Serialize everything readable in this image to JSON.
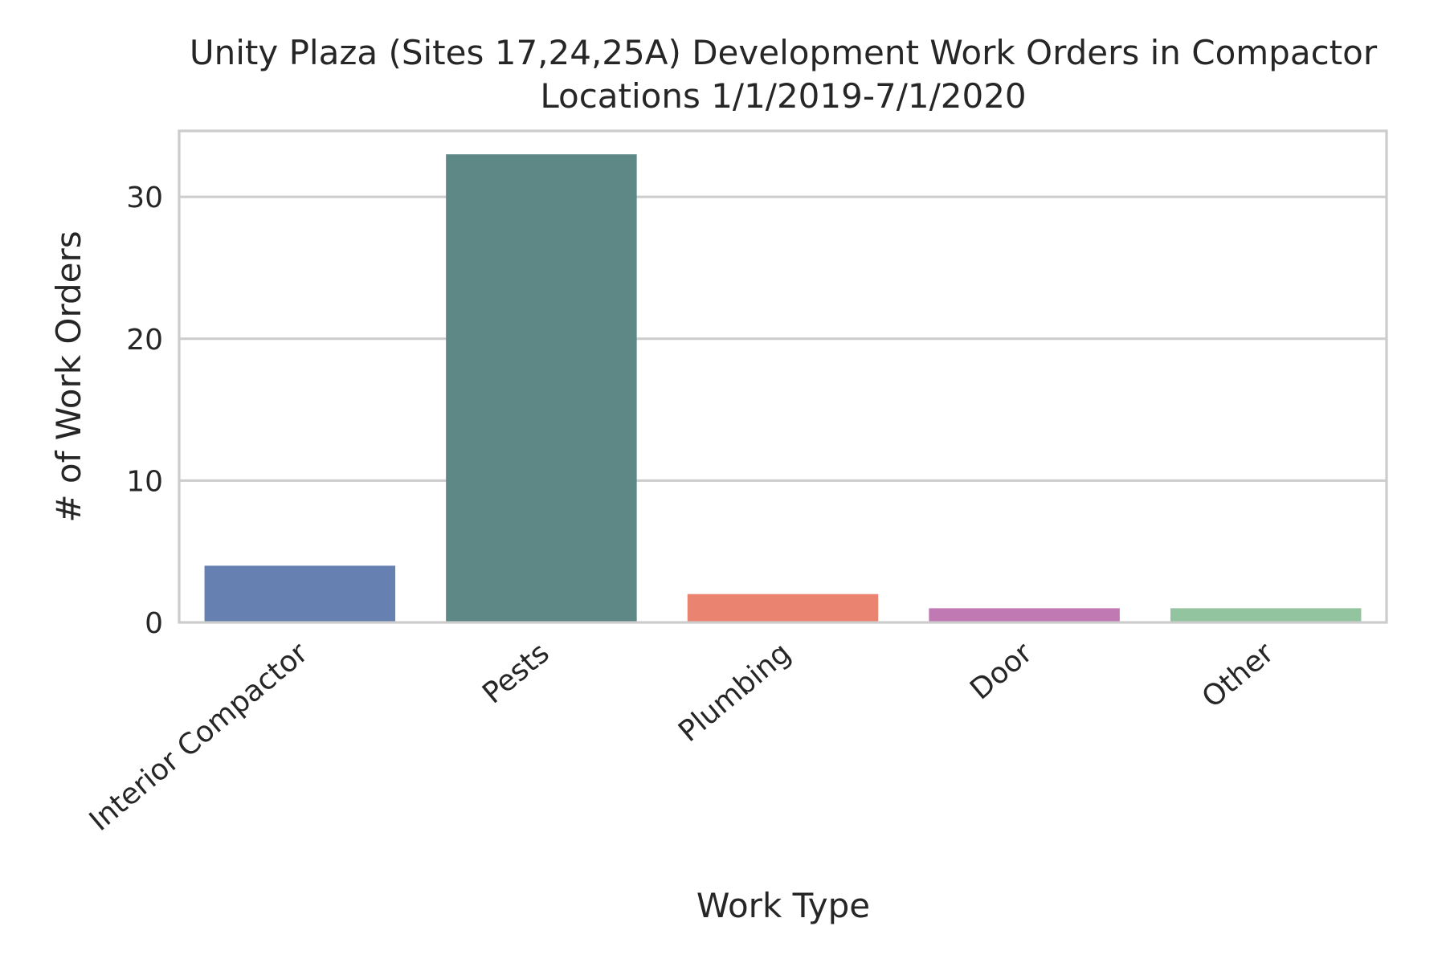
{
  "chart_data": {
    "type": "bar",
    "title_line1": "Unity Plaza (Sites 17,24,25A) Development Work Orders in Compactor",
    "title_line2": "Locations 1/1/2019-7/1/2020",
    "xlabel": "Work Type",
    "ylabel": "# of Work Orders",
    "categories": [
      "Interior Compactor",
      "Pests",
      "Plumbing",
      "Door",
      "Other"
    ],
    "values": [
      4,
      33,
      2,
      1,
      1
    ],
    "colors": [
      "#6680b1",
      "#5e8886",
      "#ea8470",
      "#c079b2",
      "#93c4a0"
    ],
    "yticks": [
      0,
      10,
      20,
      30
    ],
    "ylim": [
      0,
      34.65
    ],
    "grid": true,
    "legend": "none"
  }
}
